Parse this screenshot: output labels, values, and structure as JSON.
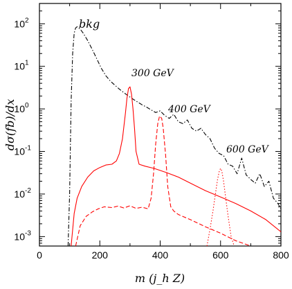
{
  "chart_data": {
    "type": "line",
    "xlabel": "m (j_h Z)",
    "ylabel": "dσ(fb)/dx",
    "xlim": [
      0,
      800
    ],
    "ylim": [
      0.0006,
      300
    ],
    "yscale": "log",
    "x_ticks": [
      0,
      200,
      400,
      600,
      800
    ],
    "x_tick_labels": [
      "0",
      "200",
      "400",
      "600",
      "800"
    ],
    "y_ticks": [
      0.001,
      0.01,
      0.1,
      1,
      10,
      100
    ],
    "y_tick_labels": [
      {
        "base": "10",
        "exp": "-3"
      },
      {
        "base": "10",
        "exp": "-2"
      },
      {
        "base": "10",
        "exp": "-1"
      },
      {
        "base": "10",
        "exp": "0"
      },
      {
        "base": "10",
        "exp": "1"
      },
      {
        "base": "10",
        "exp": "2"
      }
    ],
    "grid": false,
    "annotations": [
      "bkg",
      "300 GeV",
      "400 GeV",
      "600 GeV"
    ],
    "series": [
      {
        "style": "dashdot",
        "color": "#000000",
        "x": [
          95,
          100,
          105,
          110,
          115,
          120,
          125,
          135,
          145,
          160,
          175,
          190,
          205,
          220,
          235,
          250,
          265,
          280,
          295,
          310,
          325,
          340,
          355,
          370,
          385,
          400,
          415,
          430,
          445,
          460,
          475,
          490,
          505,
          520,
          535,
          550,
          565,
          580,
          595,
          610,
          625,
          640,
          655,
          670,
          685,
          700,
          715,
          730,
          745,
          760,
          775,
          790,
          800
        ],
        "y": [
          0.0006,
          0.01,
          1.5,
          20,
          60,
          80,
          85,
          75,
          60,
          40,
          25,
          15,
          9,
          6,
          4.5,
          3.6,
          2.9,
          2.4,
          2.0,
          1.7,
          1.45,
          1.25,
          1.1,
          0.95,
          0.82,
          0.9,
          0.7,
          0.6,
          0.75,
          0.5,
          0.45,
          0.55,
          0.35,
          0.3,
          0.35,
          0.25,
          0.2,
          0.12,
          0.09,
          0.08,
          0.05,
          0.045,
          0.03,
          0.07,
          0.028,
          0.022,
          0.018,
          0.03,
          0.015,
          0.02,
          0.008,
          0.006,
          0.0045
        ]
      },
      {
        "style": "solid",
        "color": "#ff0000",
        "x": [
          105,
          115,
          125,
          140,
          160,
          180,
          200,
          220,
          240,
          255,
          265,
          275,
          285,
          290,
          295,
          300,
          305,
          310,
          315,
          320,
          330,
          350,
          380,
          420,
          460,
          500,
          550,
          600,
          650,
          700,
          750,
          800
        ],
        "y": [
          0.0006,
          0.0035,
          0.008,
          0.015,
          0.025,
          0.035,
          0.042,
          0.048,
          0.05,
          0.06,
          0.09,
          0.2,
          0.8,
          1.8,
          3.0,
          3.3,
          2.2,
          1.0,
          0.35,
          0.1,
          0.05,
          0.045,
          0.04,
          0.032,
          0.025,
          0.018,
          0.012,
          0.0085,
          0.006,
          0.004,
          0.0025,
          0.0013
        ]
      },
      {
        "style": "dashed",
        "color": "#ff0000",
        "x": [
          120,
          135,
          155,
          175,
          195,
          215,
          240,
          260,
          280,
          300,
          320,
          340,
          360,
          370,
          378,
          385,
          392,
          398,
          405,
          410,
          418,
          425,
          435,
          445,
          460,
          500,
          550,
          600,
          650,
          700
        ],
        "y": [
          0.0006,
          0.0018,
          0.003,
          0.0038,
          0.0045,
          0.005,
          0.0048,
          0.0052,
          0.0047,
          0.0053,
          0.0046,
          0.0049,
          0.0045,
          0.008,
          0.03,
          0.15,
          0.45,
          0.68,
          0.6,
          0.35,
          0.08,
          0.015,
          0.005,
          0.004,
          0.0033,
          0.0025,
          0.0017,
          0.0012,
          0.0008,
          0.0006
        ]
      },
      {
        "style": "dotted",
        "color": "#ff0000",
        "x": [
          555,
          565,
          575,
          583,
          590,
          596,
          600,
          604,
          610,
          617,
          625,
          635,
          645
        ],
        "y": [
          0.0006,
          0.0015,
          0.004,
          0.01,
          0.022,
          0.035,
          0.04,
          0.035,
          0.02,
          0.008,
          0.003,
          0.001,
          0.0006
        ]
      }
    ]
  }
}
